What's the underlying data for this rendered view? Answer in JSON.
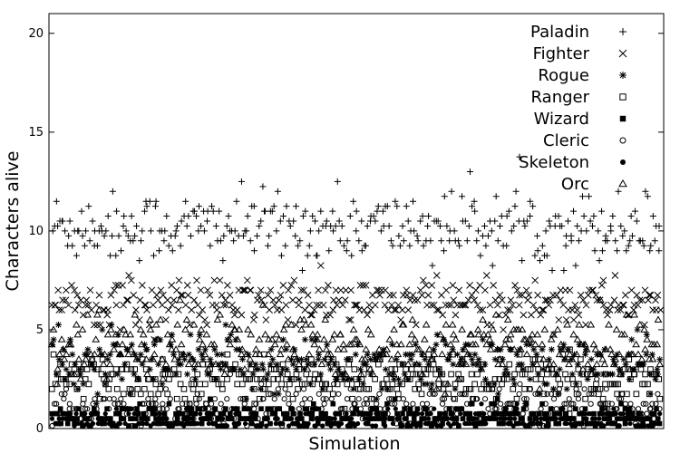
{
  "chart_data": {
    "type": "scatter",
    "xlabel": "Simulation",
    "ylabel": "Characters alive",
    "ylim": [
      0,
      21
    ],
    "yticks": [
      "0",
      "5",
      "10",
      "15",
      "20"
    ],
    "xticks_shown": false,
    "grid": false,
    "legend_position": "top-right",
    "points_per_series": 340,
    "series": [
      {
        "name": "Paladin",
        "marker": "plus",
        "mean": 10.2,
        "spread": 0.9
      },
      {
        "name": "Fighter",
        "marker": "cross",
        "mean": 6.4,
        "spread": 0.6
      },
      {
        "name": "Rogue",
        "marker": "asterisk",
        "mean": 3.2,
        "spread": 0.8
      },
      {
        "name": "Ranger",
        "marker": "square",
        "mean": 2.5,
        "spread": 0.6
      },
      {
        "name": "Wizard",
        "marker": "filled-square",
        "mean": 0.6,
        "spread": 0.3
      },
      {
        "name": "Cleric",
        "marker": "circle",
        "mean": 1.1,
        "spread": 0.5
      },
      {
        "name": "Skeleton",
        "marker": "filled-circle",
        "mean": 0.4,
        "spread": 0.3
      },
      {
        "name": "Orc",
        "marker": "triangle",
        "mean": 4.1,
        "spread": 0.9
      }
    ]
  }
}
